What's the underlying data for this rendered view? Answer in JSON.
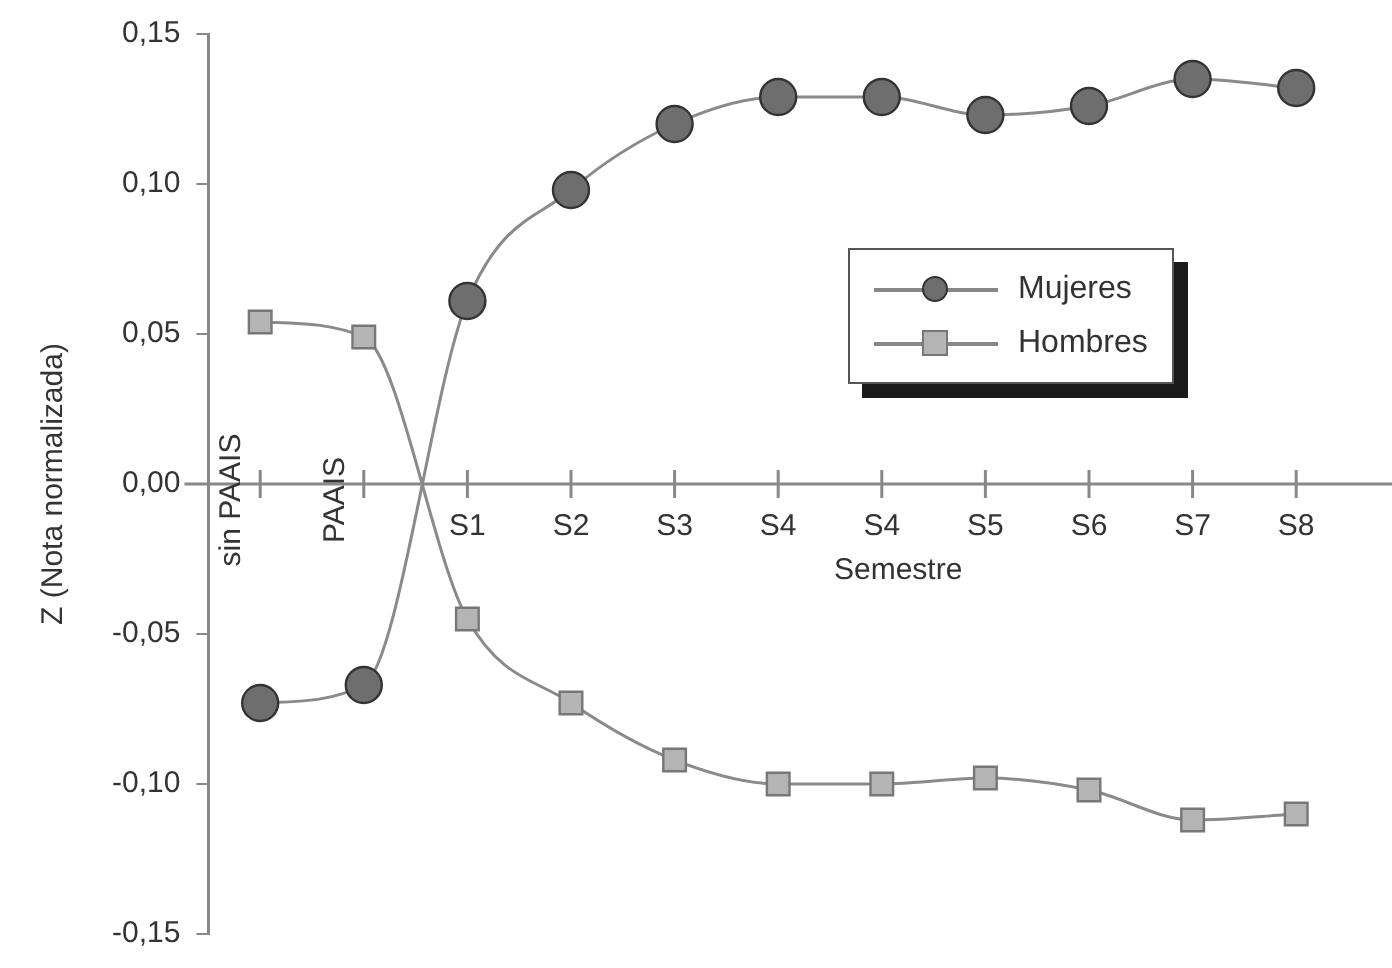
{
  "chart_data": {
    "type": "line",
    "xlabel": "Semestre",
    "ylabel": "Z (Nota normalizada)",
    "categories": [
      "sin PAAIS",
      "PAAIS",
      "S1",
      "S2",
      "S3",
      "S4",
      "S4",
      "S5",
      "S6",
      "S7",
      "S8"
    ],
    "series": [
      {
        "name": "Mujeres",
        "color": "#6e6e6e",
        "marker": "circle",
        "values": [
          -0.073,
          -0.067,
          0.061,
          0.098,
          0.12,
          0.129,
          0.129,
          0.123,
          0.126,
          0.135,
          0.132
        ]
      },
      {
        "name": "Hombres",
        "color": "#b4b4b4",
        "marker": "square",
        "values": [
          0.054,
          0.049,
          -0.045,
          -0.073,
          -0.092,
          -0.1,
          -0.1,
          -0.098,
          -0.102,
          -0.112,
          -0.11
        ]
      }
    ],
    "ylim": [
      -0.15,
      0.15
    ],
    "yticks": [
      {
        "value": -0.15,
        "label": "-0,15"
      },
      {
        "value": -0.1,
        "label": "-0,10"
      },
      {
        "value": -0.05,
        "label": "-0,05"
      },
      {
        "value": 0,
        "label": "0,00"
      },
      {
        "value": 0.05,
        "label": "0,05"
      },
      {
        "value": 0.1,
        "label": "0,10"
      },
      {
        "value": 0.15,
        "label": "0,15"
      }
    ],
    "grid": false,
    "legend": "right",
    "line_style": "solid"
  }
}
